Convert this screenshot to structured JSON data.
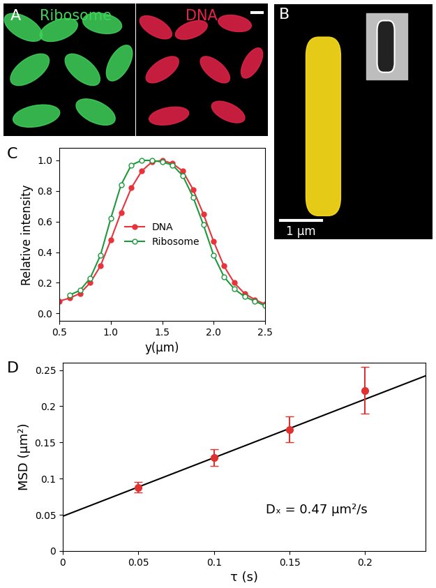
{
  "panels": [
    {
      "type": "image",
      "panel_label": "A",
      "texts": [
        "Ribosome",
        "DNA"
      ],
      "colors": [
        "#3fd35a",
        "#e8234a"
      ]
    },
    {
      "type": "image",
      "panel_label": "B",
      "scale_bar": "1 μm",
      "color": "#ffe11a"
    }
  ],
  "chart_data": [
    {
      "type": "line",
      "panel_label": "C",
      "x_label": "y(μm)",
      "y_label": "Relative intensity",
      "xlim": [
        0.5,
        2.5
      ],
      "xticks": [
        0.5,
        {
          "value": 1.0,
          "label": "1.0"
        },
        1.5,
        {
          "value": 2.0,
          "label": "2.0"
        },
        2.5
      ],
      "ylim": [
        -0.05,
        1.08
      ],
      "yticks": [
        {
          "value": 0.0,
          "label": "0.0"
        },
        0.2,
        0.4,
        0.6,
        0.8,
        {
          "value": 1.0,
          "label": "1.0"
        }
      ],
      "legend": "center",
      "series": [
        {
          "name": "DNA",
          "color": "#e8323c",
          "marker": "filled_circle",
          "x": [
            0.5,
            0.6,
            0.7,
            0.8,
            0.9,
            1.0,
            1.1,
            1.2,
            1.3,
            1.4,
            1.5,
            1.6,
            1.7,
            1.8,
            1.9,
            2.0,
            2.1,
            2.2,
            2.3,
            2.4,
            2.5
          ],
          "values": [
            0.08,
            0.1,
            0.13,
            0.2,
            0.31,
            0.48,
            0.66,
            0.82,
            0.93,
            0.99,
            1.0,
            0.98,
            0.93,
            0.81,
            0.65,
            0.47,
            0.31,
            0.2,
            0.13,
            0.09,
            0.06
          ]
        },
        {
          "name": "Ribosome",
          "color": "#1a9a3a",
          "marker": "open_circle",
          "x": [
            0.6,
            0.7,
            0.8,
            0.9,
            1.0,
            1.1,
            1.2,
            1.3,
            1.4,
            1.5,
            1.6,
            1.7,
            1.8,
            1.9,
            2.0,
            2.1,
            2.2,
            2.3,
            2.4,
            2.5
          ],
          "values": [
            0.12,
            0.15,
            0.23,
            0.38,
            0.62,
            0.84,
            0.97,
            1.0,
            1.0,
            0.99,
            0.97,
            0.9,
            0.76,
            0.58,
            0.38,
            0.24,
            0.16,
            0.11,
            0.08,
            0.05
          ]
        }
      ]
    },
    {
      "type": "scatter",
      "panel_label": "D",
      "x_label": "τ (s)",
      "y_label": "MSD (μm²)",
      "annotation": "Dₓ = 0.47 μm²/s",
      "xlim": [
        0,
        0.24
      ],
      "xticks": [
        0,
        0.05,
        0.1,
        0.15,
        0.2
      ],
      "ylim": [
        0,
        0.26
      ],
      "yticks": [
        0,
        0.05,
        0.1,
        0.15,
        0.2,
        0.25
      ],
      "series": [
        {
          "type": "errorbar",
          "color": "#e03030",
          "marker": "filled_circle",
          "x": [
            0.05,
            0.1,
            0.15,
            0.2
          ],
          "values": [
            0.088,
            0.129,
            0.168,
            0.222
          ],
          "errors": [
            0.007,
            0.012,
            0.018,
            0.032
          ]
        },
        {
          "type": "line",
          "color": "#000000",
          "line_style": "solid",
          "x": [
            0,
            0.24
          ],
          "values": [
            0.048,
            0.242
          ]
        }
      ]
    }
  ]
}
